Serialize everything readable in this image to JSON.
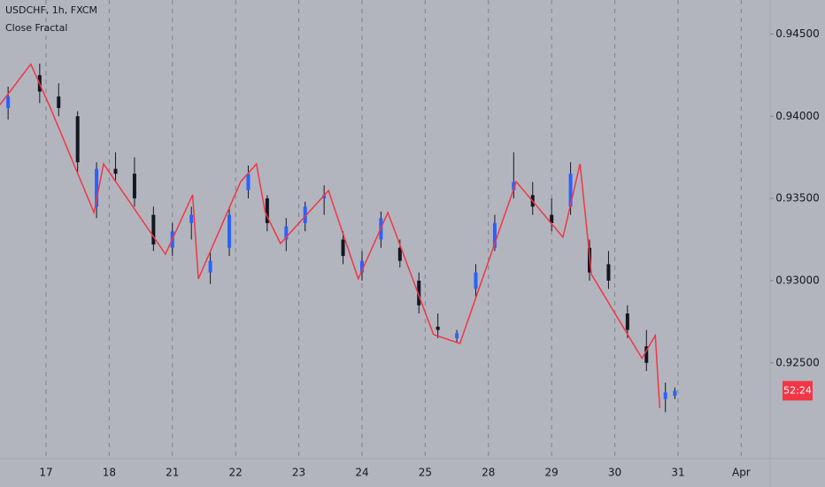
{
  "chart_data": {
    "type": "candlestick",
    "title": "USDCHF, 1h, FXCM",
    "subtitle": "Close Fractal",
    "countdown": "52:24",
    "xlim": [
      0.272,
      12.457
    ],
    "ylim": [
      0.91917,
      0.94707
    ],
    "xticks": [
      {
        "value": 1,
        "label": "17"
      },
      {
        "value": 2,
        "label": "18"
      },
      {
        "value": 3,
        "label": "21"
      },
      {
        "value": 4,
        "label": "22"
      },
      {
        "value": 5,
        "label": "23"
      },
      {
        "value": 6,
        "label": "24"
      },
      {
        "value": 7,
        "label": "25"
      },
      {
        "value": 8,
        "label": "28"
      },
      {
        "value": 9,
        "label": "29"
      },
      {
        "value": 10,
        "label": "30"
      },
      {
        "value": 11,
        "label": "31"
      },
      {
        "value": 12,
        "label": "Apr"
      }
    ],
    "yticks": [
      {
        "value": 0.945,
        "label": "0.94500"
      },
      {
        "value": 0.94,
        "label": "0.94000"
      },
      {
        "value": 0.935,
        "label": "0.93500"
      },
      {
        "value": 0.93,
        "label": "0.93000"
      },
      {
        "value": 0.925,
        "label": "0.92500"
      }
    ],
    "grid": true,
    "up_color": "#2962ff",
    "down_color": "#131722",
    "tag_color": "#f23645",
    "x": [
      0.4,
      0.9,
      1.2,
      1.5,
      1.8,
      2.1,
      2.4,
      2.7,
      3.0,
      3.3,
      3.6,
      3.9,
      4.2,
      4.5,
      4.8,
      5.1,
      5.4,
      5.7,
      6.0,
      6.3,
      6.6,
      6.9,
      7.2,
      7.5,
      7.8,
      8.1,
      8.4,
      8.7,
      9.0,
      9.3,
      9.6,
      9.9,
      10.2,
      10.5,
      10.8,
      10.95
    ],
    "open": [
      0.9405,
      0.9425,
      0.9412,
      0.94,
      0.9345,
      0.9368,
      0.9365,
      0.934,
      0.932,
      0.9335,
      0.9305,
      0.932,
      0.9355,
      0.935,
      0.9325,
      0.9335,
      0.935,
      0.9325,
      0.9305,
      0.9325,
      0.932,
      0.93,
      0.9272,
      0.9265,
      0.9295,
      0.932,
      0.9355,
      0.9352,
      0.934,
      0.9345,
      0.932,
      0.931,
      0.928,
      0.926,
      0.9228,
      0.923
    ],
    "high": [
      0.9418,
      0.9432,
      0.942,
      0.9403,
      0.9372,
      0.9378,
      0.9375,
      0.9345,
      0.9335,
      0.9345,
      0.9318,
      0.9345,
      0.937,
      0.9352,
      0.9338,
      0.9348,
      0.9358,
      0.933,
      0.9318,
      0.9342,
      0.9325,
      0.9305,
      0.928,
      0.927,
      0.931,
      0.934,
      0.9378,
      0.936,
      0.935,
      0.9372,
      0.9325,
      0.9318,
      0.9285,
      0.927,
      0.9238,
      0.9235
    ],
    "low": [
      0.9398,
      0.9408,
      0.94,
      0.9365,
      0.9338,
      0.936,
      0.9345,
      0.9318,
      0.9315,
      0.9325,
      0.9298,
      0.9315,
      0.935,
      0.933,
      0.9318,
      0.933,
      0.934,
      0.931,
      0.93,
      0.932,
      0.9308,
      0.928,
      0.9265,
      0.9262,
      0.929,
      0.9318,
      0.935,
      0.934,
      0.933,
      0.934,
      0.93,
      0.9295,
      0.9265,
      0.9245,
      0.922,
      0.9228
    ],
    "close": [
      0.9412,
      0.9415,
      0.9405,
      0.9372,
      0.9368,
      0.9365,
      0.935,
      0.9322,
      0.933,
      0.934,
      0.9312,
      0.934,
      0.9365,
      0.9335,
      0.9333,
      0.9345,
      0.9352,
      0.9315,
      0.9312,
      0.9338,
      0.9312,
      0.9285,
      0.927,
      0.9268,
      0.9305,
      0.9335,
      0.936,
      0.9345,
      0.9335,
      0.9365,
      0.9305,
      0.93,
      0.927,
      0.925,
      0.9232,
      0.9233
    ],
    "series": [
      {
        "name": "Close Fractal",
        "color": "#f23645",
        "x": [
          0.27,
          0.76,
          1.06,
          1.76,
          1.91,
          2.89,
          3.32,
          3.41,
          4.08,
          4.33,
          4.47,
          4.71,
          5.47,
          5.94,
          6.41,
          7.13,
          7.55,
          8.44,
          9.18,
          9.45,
          9.63,
          10.43,
          10.64,
          10.71
        ],
        "values": [
          0.9407,
          0.94317,
          0.94059,
          0.93414,
          0.9371,
          0.93161,
          0.93522,
          0.93011,
          0.93602,
          0.9371,
          0.93414,
          0.93226,
          0.93548,
          0.93011,
          0.93414,
          0.92672,
          0.92618,
          0.93602,
          0.93264,
          0.9371,
          0.93038,
          0.92527,
          0.92666,
          0.92225
        ]
      }
    ]
  }
}
